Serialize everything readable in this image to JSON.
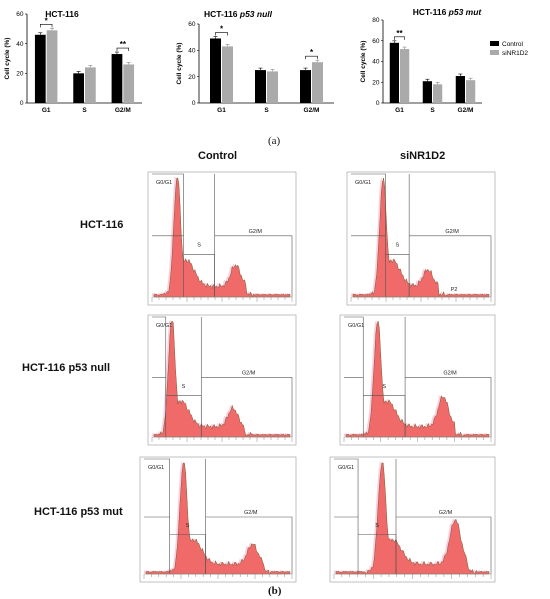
{
  "panel_a_label": "(a)",
  "panel_b_label": "(b)",
  "legend": {
    "control": "Control",
    "si": "siNR1D2"
  },
  "colors": {
    "control": "#000000",
    "si": "#aaaaaa",
    "fc_fill": "#f06a6a",
    "fc_pink": "#f3a7c9"
  },
  "chart_data": [
    {
      "type": "bar",
      "title": "HCT-116",
      "ylabel": "Cell cycle (%)",
      "ylim": [
        0,
        60
      ],
      "yticks": [
        "0",
        "20",
        "40",
        "60"
      ],
      "categories": [
        "G1",
        "S",
        "G2/M"
      ],
      "series": [
        {
          "name": "Control",
          "values": [
            46,
            20,
            33
          ]
        },
        {
          "name": "siNR1D2",
          "values": [
            49,
            24,
            26
          ]
        }
      ],
      "significance": [
        {
          "category": "G1",
          "label": "*"
        },
        {
          "category": "G2/M",
          "label": "**"
        }
      ]
    },
    {
      "type": "bar",
      "title_parts": [
        "HCT-116 ",
        "p53 null"
      ],
      "ylabel": "Cell cycle (%)",
      "ylim": [
        0,
        60
      ],
      "yticks": [
        "0",
        "20",
        "40",
        "60"
      ],
      "categories": [
        "G1",
        "S",
        "G2/M"
      ],
      "series": [
        {
          "name": "Control",
          "values": [
            49,
            25,
            25
          ]
        },
        {
          "name": "siNR1D2",
          "values": [
            43,
            24,
            31
          ]
        }
      ],
      "significance": [
        {
          "category": "G1",
          "label": "*"
        },
        {
          "category": "G2/M",
          "label": "*"
        }
      ]
    },
    {
      "type": "bar",
      "title_parts": [
        "HCT-116 ",
        "p53 mut"
      ],
      "ylabel": "Cell cycle (%)",
      "ylim": [
        0,
        80
      ],
      "yticks": [
        "0",
        "20",
        "40",
        "60",
        "80"
      ],
      "categories": [
        "G1",
        "S",
        "G2/M"
      ],
      "series": [
        {
          "name": "Control",
          "values": [
            58,
            21,
            26
          ]
        },
        {
          "name": "siNR1D2",
          "values": [
            52,
            18,
            22
          ]
        }
      ],
      "significance": [
        {
          "category": "G1",
          "label": "**"
        }
      ]
    }
  ],
  "flow": {
    "col_headers": [
      "Control",
      "siNR1D2"
    ],
    "row_headers": [
      "HCT-116",
      "HCT-116 p53 null",
      "HCT-116 p53 mut"
    ],
    "gate_labels": {
      "g0g1": "G0/G1",
      "s": "S",
      "g2m": "G2/M",
      "p2": "P2"
    }
  }
}
